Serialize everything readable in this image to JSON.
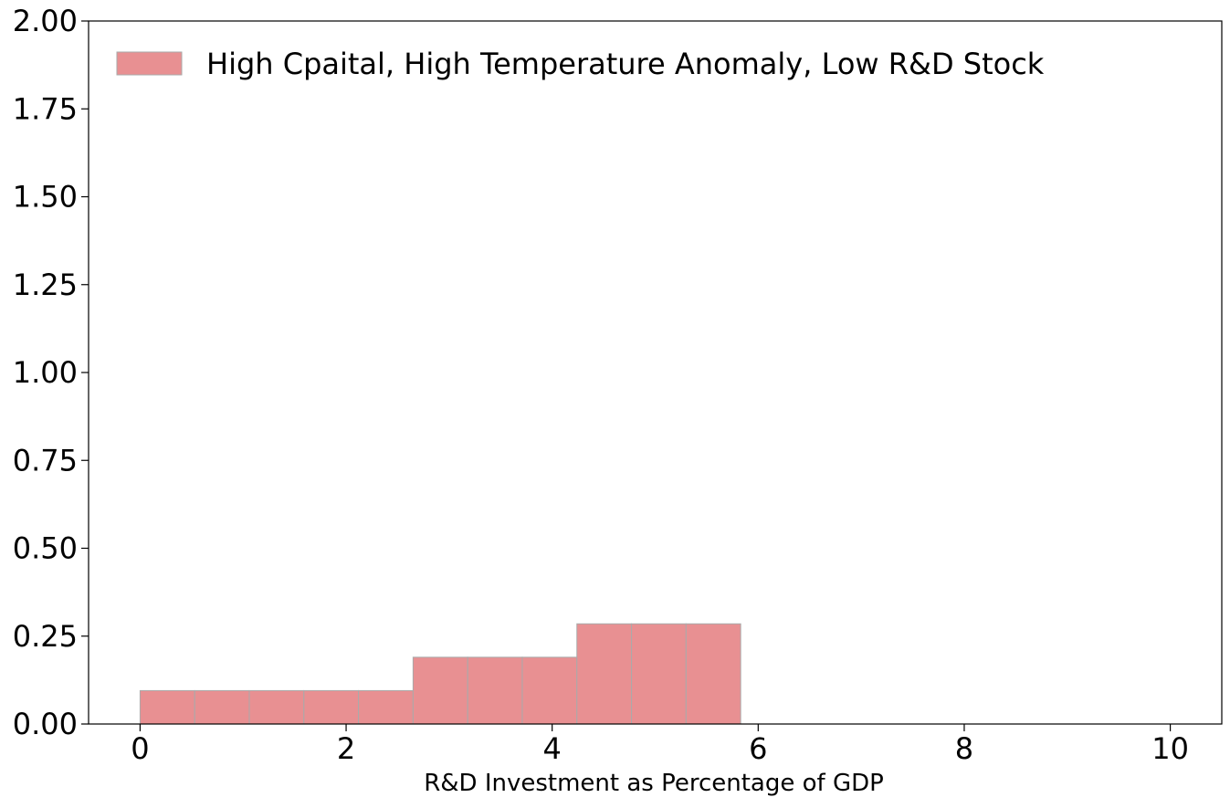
{
  "chart_data": {
    "type": "bar",
    "histogram": true,
    "xlabel": "R&D Investment as Percentage of GDP",
    "ylabel": "",
    "title": "",
    "xlim": [
      -0.5,
      10.5
    ],
    "ylim": [
      0,
      2.0
    ],
    "xticks": [
      0,
      2,
      4,
      6,
      8,
      10
    ],
    "yticks": [
      0.0,
      0.25,
      0.5,
      0.75,
      1.0,
      1.25,
      1.5,
      1.75,
      2.0
    ],
    "ytick_labels": [
      "0.00",
      "0.25",
      "0.50",
      "0.75",
      "1.00",
      "1.25",
      "1.50",
      "1.75",
      "2.00"
    ],
    "xtick_labels": [
      "0",
      "2",
      "4",
      "6",
      "8",
      "10"
    ],
    "grid": false,
    "legend_position": "top-left",
    "series": [
      {
        "name": "High Cpaital, High Temperature Anomaly, Low R&D Stock",
        "color": "#e89092",
        "edge_color": "#aaaaaa",
        "bins": [
          {
            "x0": 0.0,
            "x1": 0.53,
            "value": 0.095
          },
          {
            "x0": 0.53,
            "x1": 1.06,
            "value": 0.095
          },
          {
            "x0": 1.06,
            "x1": 1.59,
            "value": 0.095
          },
          {
            "x0": 1.59,
            "x1": 2.12,
            "value": 0.095
          },
          {
            "x0": 2.12,
            "x1": 2.65,
            "value": 0.095
          },
          {
            "x0": 2.65,
            "x1": 3.18,
            "value": 0.19
          },
          {
            "x0": 3.18,
            "x1": 3.71,
            "value": 0.19
          },
          {
            "x0": 3.71,
            "x1": 4.24,
            "value": 0.19
          },
          {
            "x0": 4.24,
            "x1": 4.77,
            "value": 0.285
          },
          {
            "x0": 4.77,
            "x1": 5.3,
            "value": 0.285
          },
          {
            "x0": 5.3,
            "x1": 5.83,
            "value": 0.285
          }
        ]
      }
    ]
  }
}
